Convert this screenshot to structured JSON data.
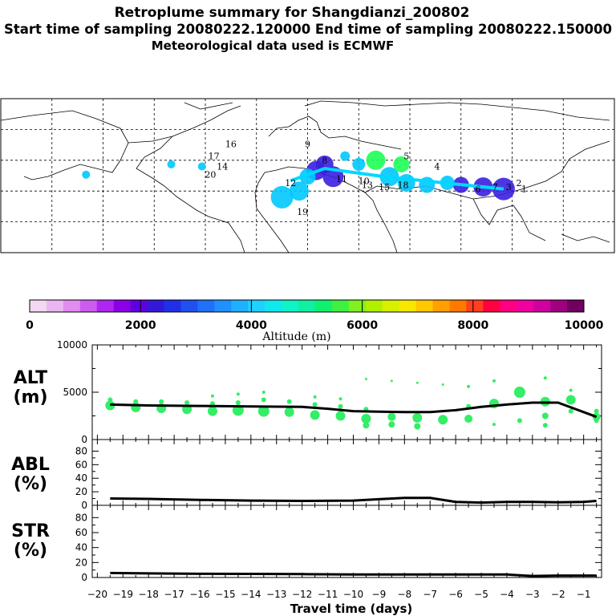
{
  "header": {
    "title": "Retroplume summary for Shangdianzi_200802",
    "sampling_line": "Start time of sampling 20080222.120000     End time of sampling 20080222.150000",
    "met_line": "Meteorological data used is ECMWF"
  },
  "map": {
    "labels": [
      {
        "t": "1",
        "lon": 127,
        "lat": 46
      },
      {
        "t": "2",
        "lon": 124,
        "lat": 49
      },
      {
        "t": "3",
        "lon": 118,
        "lat": 47
      },
      {
        "t": "4",
        "lon": 76,
        "lat": 57
      },
      {
        "t": "5",
        "lon": 58,
        "lat": 62
      },
      {
        "t": "6",
        "lon": 100,
        "lat": 46
      },
      {
        "t": "7",
        "lon": 110,
        "lat": 47
      },
      {
        "t": "8",
        "lon": 10,
        "lat": 60
      },
      {
        "t": "9",
        "lon": 0,
        "lat": 68
      },
      {
        "t": "10",
        "lon": 33,
        "lat": 50
      },
      {
        "t": "11",
        "lon": 20,
        "lat": 51
      },
      {
        "t": "12",
        "lon": -10,
        "lat": 49
      },
      {
        "t": "13",
        "lon": 35,
        "lat": 48
      },
      {
        "t": "14",
        "lon": -50,
        "lat": 57
      },
      {
        "t": "15",
        "lon": 45,
        "lat": 47
      },
      {
        "t": "16",
        "lon": -45,
        "lat": 68
      },
      {
        "t": "17",
        "lon": -55,
        "lat": 62
      },
      {
        "t": "18",
        "lon": 56,
        "lat": 48
      },
      {
        "t": "19",
        "lon": -3,
        "lat": 35
      },
      {
        "t": "20",
        "lon": -57,
        "lat": 53
      }
    ],
    "colors": {
      "high": "#1dff55",
      "mid": "#00c8ff",
      "low": "#3a1fe0"
    }
  },
  "colorbar": {
    "ticks": [
      "0",
      "2000",
      "4000",
      "6000",
      "8000",
      "10000"
    ],
    "label": "Altitude (m)",
    "colors": [
      "#f2d8f2",
      "#eab6f2",
      "#e08cf0",
      "#cc5cf0",
      "#b026f0",
      "#8c00e8",
      "#6000e0",
      "#3418d8",
      "#2030e8",
      "#2050f0",
      "#2070f8",
      "#2090ff",
      "#20b0ff",
      "#20d0ff",
      "#10e8ee",
      "#10f2c8",
      "#10f0a0",
      "#10f070",
      "#40f040",
      "#80f020",
      "#b0f000",
      "#d8f000",
      "#f8e800",
      "#ffc800",
      "#ffa000",
      "#ff7800",
      "#ff4020",
      "#ff0040",
      "#ff0080",
      "#f000a0",
      "#d000a0",
      "#a00080",
      "#700060"
    ]
  },
  "chart_data": [
    {
      "type": "scatter",
      "title": "ALT",
      "ylabel": "(m)",
      "xlabel": "Travel time (days)",
      "ylim": [
        0,
        10000
      ],
      "yticks": [
        "0",
        "5000",
        "10000"
      ],
      "xlim": [
        -20.2,
        -0.3
      ],
      "mean_line": {
        "x": [
          -19.5,
          -18,
          -16,
          -14,
          -12,
          -11,
          -10,
          -9,
          -8,
          -7,
          -6,
          -5,
          -4,
          -3,
          -2,
          -0.5
        ],
        "y": [
          3700,
          3600,
          3550,
          3500,
          3450,
          3250,
          3000,
          2950,
          2900,
          2900,
          3100,
          3450,
          3700,
          3900,
          3900,
          2400
        ]
      },
      "points": [
        {
          "x": -19.5,
          "y": 3600,
          "s": 6
        },
        {
          "x": -19.5,
          "y": 4200,
          "s": 3
        },
        {
          "x": -18.5,
          "y": 3400,
          "s": 6
        },
        {
          "x": -18.5,
          "y": 4000,
          "s": 3
        },
        {
          "x": -17.5,
          "y": 3300,
          "s": 6
        },
        {
          "x": -17.5,
          "y": 4000,
          "s": 3
        },
        {
          "x": -16.5,
          "y": 3200,
          "s": 6
        },
        {
          "x": -16.5,
          "y": 3900,
          "s": 3
        },
        {
          "x": -15.5,
          "y": 3000,
          "s": 6
        },
        {
          "x": -15.5,
          "y": 3800,
          "s": 3
        },
        {
          "x": -15.5,
          "y": 4600,
          "s": 2
        },
        {
          "x": -14.5,
          "y": 3100,
          "s": 7
        },
        {
          "x": -14.5,
          "y": 3900,
          "s": 3
        },
        {
          "x": -14.5,
          "y": 4800,
          "s": 2
        },
        {
          "x": -13.5,
          "y": 3000,
          "s": 7
        },
        {
          "x": -13.5,
          "y": 4200,
          "s": 3
        },
        {
          "x": -13.5,
          "y": 5000,
          "s": 2
        },
        {
          "x": -12.5,
          "y": 2900,
          "s": 6
        },
        {
          "x": -12.5,
          "y": 4000,
          "s": 3
        },
        {
          "x": -11.5,
          "y": 2600,
          "s": 6
        },
        {
          "x": -11.5,
          "y": 3700,
          "s": 3
        },
        {
          "x": -11.5,
          "y": 4500,
          "s": 2
        },
        {
          "x": -10.5,
          "y": 2500,
          "s": 6
        },
        {
          "x": -10.5,
          "y": 3500,
          "s": 3
        },
        {
          "x": -10.5,
          "y": 4300,
          "s": 2
        },
        {
          "x": -9.5,
          "y": 2200,
          "s": 6
        },
        {
          "x": -9.5,
          "y": 1500,
          "s": 4
        },
        {
          "x": -9.5,
          "y": 3200,
          "s": 3
        },
        {
          "x": -9.5,
          "y": 6400,
          "s": 1.5
        },
        {
          "x": -8.5,
          "y": 2400,
          "s": 5
        },
        {
          "x": -8.5,
          "y": 1600,
          "s": 4
        },
        {
          "x": -8.5,
          "y": 6200,
          "s": 1.5
        },
        {
          "x": -7.5,
          "y": 2300,
          "s": 6
        },
        {
          "x": -7.5,
          "y": 1400,
          "s": 4
        },
        {
          "x": -7.5,
          "y": 6000,
          "s": 1.5
        },
        {
          "x": -6.5,
          "y": 2100,
          "s": 6
        },
        {
          "x": -6.5,
          "y": 5800,
          "s": 1.5
        },
        {
          "x": -5.5,
          "y": 2200,
          "s": 5
        },
        {
          "x": -5.5,
          "y": 3500,
          "s": 3
        },
        {
          "x": -5.5,
          "y": 5600,
          "s": 2
        },
        {
          "x": -4.5,
          "y": 3800,
          "s": 6
        },
        {
          "x": -4.5,
          "y": 1600,
          "s": 2
        },
        {
          "x": -4.5,
          "y": 6200,
          "s": 2
        },
        {
          "x": -3.5,
          "y": 5000,
          "s": 7
        },
        {
          "x": -3.5,
          "y": 2000,
          "s": 3
        },
        {
          "x": -2.5,
          "y": 4000,
          "s": 6
        },
        {
          "x": -2.5,
          "y": 2500,
          "s": 4
        },
        {
          "x": -2.5,
          "y": 1500,
          "s": 3
        },
        {
          "x": -2.5,
          "y": 6500,
          "s": 2
        },
        {
          "x": -1.5,
          "y": 4200,
          "s": 6
        },
        {
          "x": -1.5,
          "y": 3000,
          "s": 3
        },
        {
          "x": -1.5,
          "y": 5200,
          "s": 2
        },
        {
          "x": -0.5,
          "y": 2400,
          "s": 5
        },
        {
          "x": -0.5,
          "y": 3000,
          "s": 3
        },
        {
          "x": -0.5,
          "y": 2000,
          "s": 3
        }
      ],
      "point_color": "#33ee66"
    },
    {
      "type": "line",
      "title": "ABL",
      "ylabel": "(%)",
      "ylim": [
        0,
        90
      ],
      "yticks": [
        "0",
        "20",
        "40",
        "60",
        "80"
      ],
      "x": [
        -19.5,
        -18,
        -16,
        -14,
        -12,
        -10,
        -9,
        -8,
        -7,
        -6,
        -5,
        -4,
        -3,
        -2,
        -1,
        -0.5
      ],
      "y": [
        10,
        9.5,
        8,
        7,
        6.5,
        7,
        9,
        11,
        11,
        5,
        4,
        5,
        5,
        4.5,
        5,
        6.5
      ]
    },
    {
      "type": "line",
      "title": "STR",
      "ylabel": "(%)",
      "ylim": [
        0,
        90
      ],
      "yticks": [
        "0",
        "20",
        "40",
        "60",
        "80"
      ],
      "x": [
        -19.5,
        -18,
        -16,
        -14,
        -12,
        -10,
        -8,
        -6,
        -4,
        -3,
        -2,
        -1,
        -0.5
      ],
      "y": [
        6,
        5.5,
        5,
        4.8,
        4.5,
        4,
        4,
        4,
        4,
        2,
        2.5,
        2.5,
        2.5
      ]
    }
  ],
  "xaxis": {
    "ticks": [
      "−20",
      "−19",
      "−18",
      "−17",
      "−16",
      "−15",
      "−14",
      "−13",
      "−12",
      "−11",
      "−10",
      "−9",
      "−8",
      "−7",
      "−6",
      "−5",
      "−4",
      "−3",
      "−2",
      "−1"
    ],
    "label": "Travel time (days)"
  }
}
